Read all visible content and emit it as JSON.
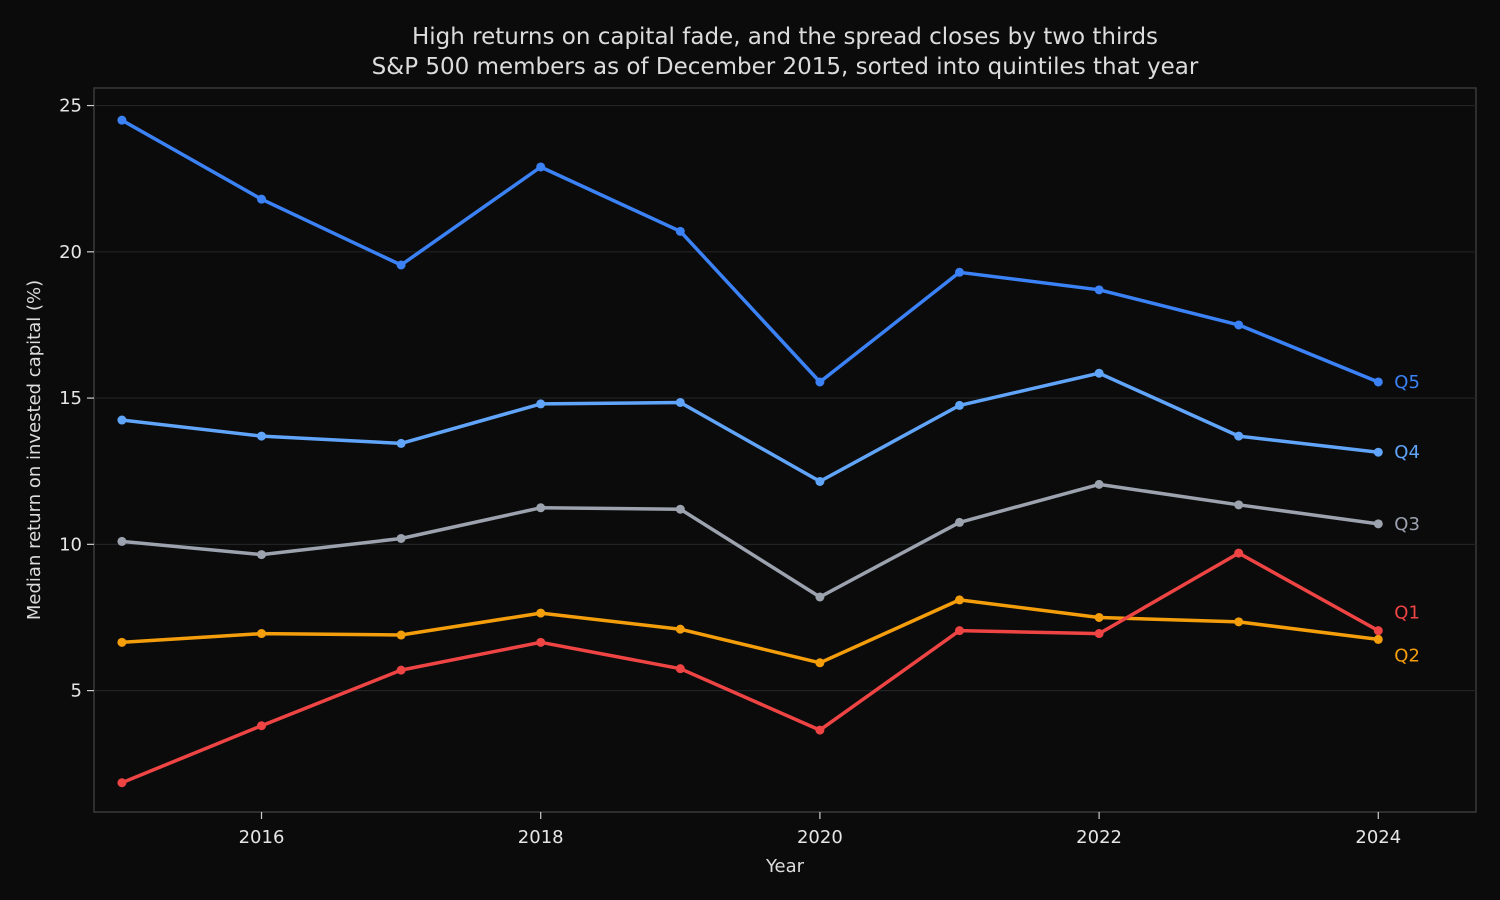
{
  "chart_data": {
    "type": "line",
    "title": "High returns on capital fade, and the spread closes by two thirds",
    "subtitle": "S&P 500 members as of December 2015, sorted into quintiles that year",
    "xlabel": "Year",
    "ylabel": "Median return on invested capital (%)",
    "x": [
      2015,
      2016,
      2017,
      2018,
      2019,
      2020,
      2021,
      2022,
      2023,
      2024
    ],
    "xlim": [
      2014.8,
      2024.7
    ],
    "ylim": [
      0.85,
      25.6
    ],
    "x_ticks": [
      2016,
      2018,
      2020,
      2022,
      2024
    ],
    "y_ticks": [
      5,
      10,
      15,
      20,
      25
    ],
    "grid": "horizontal",
    "series": [
      {
        "name": "Q5",
        "color": "#3b82f6",
        "values": [
          24.5,
          21.8,
          19.55,
          22.9,
          20.7,
          15.55,
          19.3,
          18.7,
          17.5,
          15.55
        ]
      },
      {
        "name": "Q4",
        "color": "#60a5fa",
        "values": [
          14.25,
          13.7,
          13.45,
          14.8,
          14.85,
          12.15,
          14.75,
          15.85,
          13.7,
          13.15
        ]
      },
      {
        "name": "Q3",
        "color": "#9ca3af",
        "values": [
          10.1,
          9.65,
          10.2,
          11.25,
          11.2,
          8.2,
          10.75,
          12.05,
          11.35,
          10.7
        ]
      },
      {
        "name": "Q2",
        "color": "#f59e0b",
        "values": [
          6.65,
          6.95,
          6.9,
          7.65,
          7.1,
          5.95,
          8.1,
          7.5,
          7.35,
          6.75
        ]
      },
      {
        "name": "Q1",
        "color": "#ef4444",
        "values": [
          1.85,
          3.8,
          5.7,
          6.65,
          5.75,
          3.65,
          7.05,
          6.95,
          9.7,
          7.05
        ]
      }
    ]
  }
}
